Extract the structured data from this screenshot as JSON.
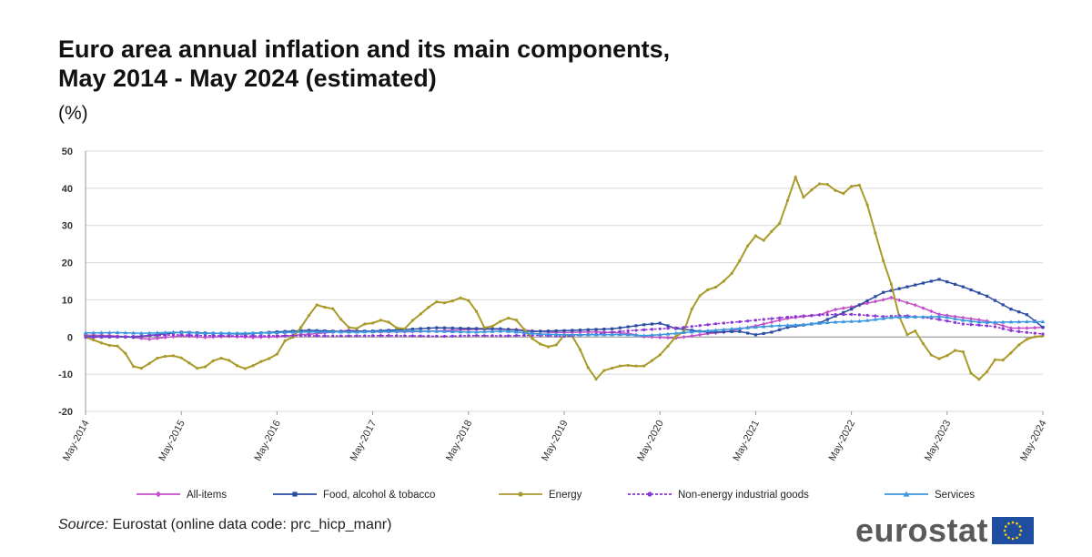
{
  "header": {
    "title_line1": "Euro area annual inflation and its main components,",
    "title_line2": "May 2014 - May 2024 (estimated)",
    "unit": "(%)"
  },
  "footer": {
    "source_label": "Source:",
    "source_text": "Eurostat (online data code: prc_hicp_manr)",
    "logo_text": "eurostat"
  },
  "colors": {
    "all_items": "#c34fc9",
    "food": "#2b4ca3",
    "energy": "#a99a2a",
    "non_energy": "#8b35d6",
    "services": "#3b96df",
    "grid": "#d9d9d9",
    "flag_blue": "#1f4ea0",
    "flag_star": "#ffd200"
  },
  "chart_data": {
    "type": "line",
    "x_start": "2014-05",
    "x_end": "2024-05",
    "x_tick_labels": [
      "May-2014",
      "May-2015",
      "May-2016",
      "May-2017",
      "May-2018",
      "May-2019",
      "May-2020",
      "May-2021",
      "May-2022",
      "May-2023",
      "May-2024"
    ],
    "ylim": [
      -20,
      50
    ],
    "y_ticks": [
      -20,
      -10,
      0,
      10,
      20,
      30,
      40,
      50
    ],
    "grid": true,
    "legend_position": "bottom",
    "series": [
      {
        "name": "All-items",
        "key": "all_items",
        "marker": "diamond",
        "dash": false,
        "points": [
          [
            0,
            0.5
          ],
          [
            3,
            0.4
          ],
          [
            6,
            -0.1
          ],
          [
            8,
            -0.6
          ],
          [
            10,
            -0.1
          ],
          [
            12,
            0.3
          ],
          [
            15,
            -0.1
          ],
          [
            18,
            0.2
          ],
          [
            21,
            -0.1
          ],
          [
            24,
            0.1
          ],
          [
            27,
            0.6
          ],
          [
            30,
            1.1
          ],
          [
            33,
            1.8
          ],
          [
            36,
            1.4
          ],
          [
            40,
            1.4
          ],
          [
            44,
            1.6
          ],
          [
            48,
            2.0
          ],
          [
            51,
            2.1
          ],
          [
            54,
            2.0
          ],
          [
            58,
            1.3
          ],
          [
            60,
            1.2
          ],
          [
            64,
            1.4
          ],
          [
            68,
            1.0
          ],
          [
            70,
            0.1
          ],
          [
            74,
            -0.3
          ],
          [
            78,
            0.9
          ],
          [
            80,
            1.3
          ],
          [
            84,
            3.0
          ],
          [
            88,
            5.0
          ],
          [
            92,
            6.0
          ],
          [
            94,
            7.4
          ],
          [
            96,
            8.1
          ],
          [
            98,
            9.1
          ],
          [
            100,
            10.0
          ],
          [
            101,
            10.6
          ],
          [
            103,
            9.2
          ],
          [
            104,
            8.6
          ],
          [
            107,
            6.1
          ],
          [
            110,
            5.2
          ],
          [
            113,
            4.3
          ],
          [
            116,
            2.4
          ],
          [
            118,
            2.4
          ],
          [
            120,
            2.6
          ]
        ]
      },
      {
        "name": "Food, alcohol & tobacco",
        "key": "food",
        "marker": "square",
        "dash": false,
        "points": [
          [
            0,
            0.1
          ],
          [
            6,
            0.0
          ],
          [
            12,
            1.3
          ],
          [
            16,
            1.0
          ],
          [
            20,
            0.8
          ],
          [
            24,
            1.4
          ],
          [
            28,
            1.8
          ],
          [
            32,
            1.5
          ],
          [
            36,
            1.6
          ],
          [
            40,
            2.0
          ],
          [
            44,
            2.5
          ],
          [
            48,
            2.3
          ],
          [
            52,
            2.2
          ],
          [
            56,
            1.5
          ],
          [
            60,
            1.7
          ],
          [
            66,
            2.2
          ],
          [
            70,
            3.3
          ],
          [
            72,
            3.7
          ],
          [
            74,
            2.3
          ],
          [
            78,
            1.3
          ],
          [
            82,
            1.5
          ],
          [
            84,
            0.6
          ],
          [
            86,
            1.3
          ],
          [
            88,
            2.6
          ],
          [
            92,
            3.8
          ],
          [
            96,
            7.5
          ],
          [
            100,
            12.0
          ],
          [
            104,
            14.0
          ],
          [
            107,
            15.5
          ],
          [
            110,
            13.5
          ],
          [
            113,
            11.0
          ],
          [
            116,
            7.5
          ],
          [
            118,
            6.0
          ],
          [
            120,
            2.6
          ]
        ]
      },
      {
        "name": "Energy",
        "key": "energy",
        "marker": "circle",
        "dash": false,
        "points": [
          [
            0,
            0.0
          ],
          [
            2,
            -1.0
          ],
          [
            4,
            -2.0
          ],
          [
            5,
            -2.3
          ],
          [
            7,
            -2.5
          ],
          [
            9,
            -6.3
          ],
          [
            10,
            -9.0
          ],
          [
            12,
            -8.0
          ],
          [
            14,
            -5.8
          ],
          [
            16,
            -5.2
          ],
          [
            18,
            -5.0
          ],
          [
            20,
            -6.0
          ],
          [
            22,
            -8.5
          ],
          [
            24,
            -8.0
          ],
          [
            26,
            -6.0
          ],
          [
            28,
            -5.5
          ],
          [
            30,
            -7.5
          ],
          [
            32,
            -8.5
          ],
          [
            34,
            -7.5
          ],
          [
            36,
            -6.0
          ],
          [
            38,
            -5.5
          ],
          [
            40,
            -1.0
          ],
          [
            42,
            0.2
          ],
          [
            44,
            4.2
          ],
          [
            46,
            8.2
          ],
          [
            47,
            9.3
          ],
          [
            48,
            8.0
          ],
          [
            50,
            7.5
          ],
          [
            52,
            3.0
          ],
          [
            54,
            2.0
          ],
          [
            56,
            3.5
          ],
          [
            58,
            3.8
          ],
          [
            60,
            5.0
          ],
          [
            62,
            2.5
          ],
          [
            64,
            2.2
          ],
          [
            66,
            5.0
          ],
          [
            68,
            7.0
          ],
          [
            70,
            9.5
          ],
          [
            72,
            9.2
          ],
          [
            74,
            9.8
          ],
          [
            76,
            11.0
          ],
          [
            78,
            8.0
          ],
          [
            80,
            2.5
          ],
          [
            82,
            3.0
          ],
          [
            84,
            5.0
          ],
          [
            86,
            5.2
          ],
          [
            88,
            2.0
          ],
          [
            90,
            -1.0
          ],
          [
            92,
            -2.5
          ],
          [
            94,
            -2.8
          ],
          [
            96,
            0.5
          ],
          [
            98,
            0.2
          ],
          [
            100,
            -5.8
          ],
          [
            102,
            -11.9
          ],
          [
            104,
            -9.0
          ],
          [
            106,
            -8.2
          ],
          [
            108,
            -7.5
          ],
          [
            110,
            -7.8
          ],
          [
            112,
            -7.8
          ],
          [
            114,
            -6.0
          ],
          [
            116,
            -4.0
          ],
          [
            118,
            -0.2
          ],
          [
            120,
            1.5
          ],
          [
            122,
            9.0
          ],
          [
            124,
            12.5
          ],
          [
            126,
            13.0
          ],
          [
            128,
            15.0
          ],
          [
            130,
            17.6
          ],
          [
            132,
            22.5
          ],
          [
            134,
            27.5
          ],
          [
            136,
            26.0
          ],
          [
            138,
            29.0
          ],
          [
            140,
            31.6
          ],
          [
            142,
            44.3
          ],
          [
            144,
            37.6
          ],
          [
            146,
            40.0
          ],
          [
            148,
            42.0
          ],
          [
            150,
            39.6
          ],
          [
            152,
            38.6
          ],
          [
            154,
            41.0
          ],
          [
            155,
            41.5
          ],
          [
            157,
            34.9
          ],
          [
            159,
            25.0
          ],
          [
            161,
            16.0
          ],
          [
            162,
            13.0
          ],
          [
            163,
            7.0
          ],
          [
            164,
            -0.6
          ],
          [
            166,
            2.5
          ],
          [
            168,
            -1.8
          ],
          [
            170,
            -5.6
          ],
          [
            172,
            -6.0
          ],
          [
            174,
            -3.5
          ],
          [
            176,
            -4.0
          ],
          [
            178,
            -11.2
          ],
          [
            180,
            -11.5
          ],
          [
            182,
            -6.1
          ],
          [
            184,
            -6.2
          ],
          [
            186,
            -3.8
          ],
          [
            188,
            -1.0
          ],
          [
            190,
            0.0
          ],
          [
            192,
            0.3
          ]
        ]
      },
      {
        "name": "Non-energy industrial goods",
        "key": "non_energy",
        "marker": "circle",
        "dash": true,
        "points": [
          [
            0,
            -0.1
          ],
          [
            6,
            0.0
          ],
          [
            12,
            0.3
          ],
          [
            18,
            0.6
          ],
          [
            24,
            0.4
          ],
          [
            30,
            0.3
          ],
          [
            36,
            0.3
          ],
          [
            42,
            0.4
          ],
          [
            48,
            0.3
          ],
          [
            54,
            0.3
          ],
          [
            60,
            0.4
          ],
          [
            66,
            0.3
          ],
          [
            72,
            0.2
          ],
          [
            78,
            0.4
          ],
          [
            84,
            0.3
          ],
          [
            90,
            0.5
          ],
          [
            96,
            0.2
          ],
          [
            102,
            0.8
          ],
          [
            108,
            1.6
          ],
          [
            114,
            2.1
          ],
          [
            120,
            2.6
          ],
          [
            126,
            3.5
          ],
          [
            132,
            4.2
          ],
          [
            138,
            5.0
          ],
          [
            142,
            5.5
          ],
          [
            148,
            6.0
          ],
          [
            154,
            6.1
          ],
          [
            160,
            5.5
          ],
          [
            164,
            5.8
          ],
          [
            170,
            5.0
          ],
          [
            176,
            3.5
          ],
          [
            182,
            2.9
          ],
          [
            186,
            1.6
          ],
          [
            192,
            0.8
          ]
        ]
      },
      {
        "name": "Services",
        "key": "services",
        "marker": "triangle",
        "dash": false,
        "points": [
          [
            0,
            1.1
          ],
          [
            6,
            1.2
          ],
          [
            12,
            1.0
          ],
          [
            18,
            1.3
          ],
          [
            24,
            1.0
          ],
          [
            30,
            1.0
          ],
          [
            36,
            1.1
          ],
          [
            42,
            1.3
          ],
          [
            48,
            1.4
          ],
          [
            54,
            1.3
          ],
          [
            60,
            1.5
          ],
          [
            66,
            1.6
          ],
          [
            72,
            1.5
          ],
          [
            78,
            1.3
          ],
          [
            84,
            1.6
          ],
          [
            90,
            0.9
          ],
          [
            96,
            0.6
          ],
          [
            102,
            0.6
          ],
          [
            108,
            0.7
          ],
          [
            112,
            0.4
          ],
          [
            116,
            0.7
          ],
          [
            120,
            1.2
          ],
          [
            126,
            1.8
          ],
          [
            132,
            2.4
          ],
          [
            138,
            3.0
          ],
          [
            144,
            3.3
          ],
          [
            150,
            4.0
          ],
          [
            156,
            4.3
          ],
          [
            162,
            5.3
          ],
          [
            168,
            5.4
          ],
          [
            172,
            5.5
          ],
          [
            176,
            4.5
          ],
          [
            180,
            3.9
          ],
          [
            184,
            4.0
          ],
          [
            188,
            4.1
          ],
          [
            192,
            4.1
          ]
        ]
      }
    ]
  }
}
